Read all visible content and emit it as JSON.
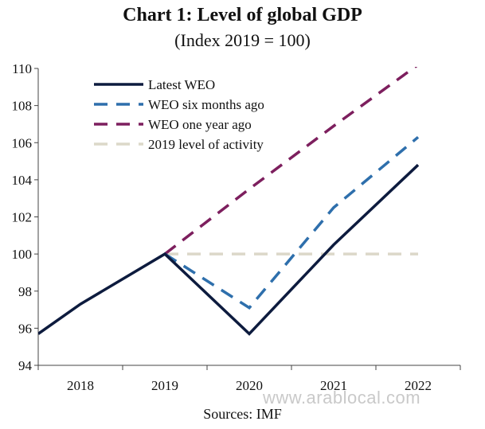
{
  "chart_data": {
    "type": "line",
    "title": "Chart 1: Level of global GDP",
    "subtitle": "(Index 2019 = 100)",
    "source": "Sources: IMF",
    "x": [
      2017.5,
      2018,
      2019,
      2020,
      2021,
      2022
    ],
    "xticks": [
      "2018",
      "2019",
      "2020",
      "2021",
      "2022"
    ],
    "yticks": [
      "94",
      "96",
      "98",
      "100",
      "102",
      "104",
      "106",
      "108",
      "110"
    ],
    "ylim": [
      94,
      110
    ],
    "legend_position": "top-left",
    "series": [
      {
        "name": "Latest WEO",
        "color": "#0d1b3e",
        "style": "solid",
        "points": [
          [
            2017.5,
            95.7
          ],
          [
            2018,
            97.3
          ],
          [
            2019,
            100.0
          ],
          [
            2020,
            95.7
          ],
          [
            2021,
            100.5
          ],
          [
            2022,
            104.8
          ]
        ]
      },
      {
        "name": "WEO six months ago",
        "color": "#2e6fac",
        "style": "dashed",
        "points": [
          [
            2019,
            100.0
          ],
          [
            2020,
            97.1
          ],
          [
            2021,
            102.5
          ],
          [
            2022,
            106.3
          ]
        ]
      },
      {
        "name": "WEO one year ago",
        "color": "#7d1f5e",
        "style": "dashed",
        "points": [
          [
            2019,
            100.0
          ],
          [
            2020,
            103.5
          ],
          [
            2021,
            106.9
          ],
          [
            2022,
            110.2
          ]
        ]
      },
      {
        "name": "2019 level of activity",
        "color": "#dcd8c9",
        "style": "dashed",
        "points": [
          [
            2019,
            100.0
          ],
          [
            2022,
            100.0
          ]
        ]
      }
    ]
  },
  "watermark": "www.arablocal.com"
}
